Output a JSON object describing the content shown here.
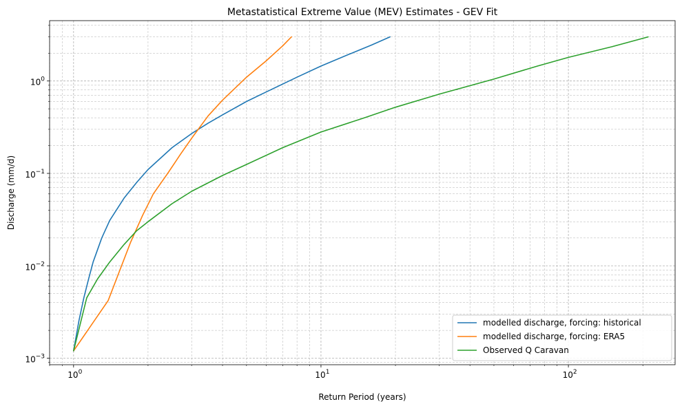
{
  "chart_data": {
    "type": "line",
    "title": "Metastatistical Extreme Value (MEV) Estimates - GEV Fit",
    "xlabel": "Return Period (years)",
    "ylabel": "Discharge (mm/d)",
    "xscale": "log",
    "yscale": "log",
    "xlim": [
      0.8,
      270
    ],
    "ylim": [
      0.00085,
      4.5
    ],
    "grid": true,
    "legend_position": "lower-right",
    "x_ticks": [
      {
        "value": 1,
        "base": "10",
        "exp": "0"
      },
      {
        "value": 10,
        "base": "10",
        "exp": "1"
      },
      {
        "value": 100,
        "base": "10",
        "exp": "2"
      }
    ],
    "y_ticks": [
      {
        "value": 0.001,
        "base": "10",
        "exp": "−3"
      },
      {
        "value": 0.01,
        "base": "10",
        "exp": "−2"
      },
      {
        "value": 0.1,
        "base": "10",
        "exp": "−1"
      },
      {
        "value": 1,
        "base": "10",
        "exp": "0"
      }
    ],
    "series": [
      {
        "name": "modelled discharge, forcing: historical",
        "color": "#1f77b4",
        "points": [
          [
            1.0,
            0.0012
          ],
          [
            1.05,
            0.0025
          ],
          [
            1.1,
            0.0045
          ],
          [
            1.15,
            0.0072
          ],
          [
            1.2,
            0.011
          ],
          [
            1.3,
            0.02
          ],
          [
            1.4,
            0.031
          ],
          [
            1.6,
            0.054
          ],
          [
            1.8,
            0.08
          ],
          [
            2.0,
            0.11
          ],
          [
            2.5,
            0.19
          ],
          [
            3.0,
            0.27
          ],
          [
            3.5,
            0.35
          ],
          [
            4.0,
            0.43
          ],
          [
            5.0,
            0.6
          ],
          [
            6.0,
            0.76
          ],
          [
            8.0,
            1.1
          ],
          [
            10.0,
            1.45
          ],
          [
            13.0,
            1.95
          ],
          [
            16.0,
            2.45
          ],
          [
            19.0,
            3.0
          ]
        ]
      },
      {
        "name": "modelled discharge, forcing: ERA5",
        "color": "#ff7f0e",
        "points": [
          [
            1.0,
            0.0012
          ],
          [
            1.38,
            0.0042
          ],
          [
            1.5,
            0.0075
          ],
          [
            1.7,
            0.018
          ],
          [
            1.9,
            0.035
          ],
          [
            2.1,
            0.06
          ],
          [
            2.4,
            0.1
          ],
          [
            2.7,
            0.16
          ],
          [
            3.0,
            0.24
          ],
          [
            3.5,
            0.42
          ],
          [
            4.0,
            0.62
          ],
          [
            5.0,
            1.1
          ],
          [
            6.0,
            1.65
          ],
          [
            7.0,
            2.4
          ],
          [
            7.6,
            3.0
          ]
        ]
      },
      {
        "name": "Observed Q Caravan",
        "color": "#2ca02c",
        "points": [
          [
            1.0,
            0.0012
          ],
          [
            1.13,
            0.0045
          ],
          [
            1.25,
            0.0072
          ],
          [
            1.4,
            0.011
          ],
          [
            1.6,
            0.017
          ],
          [
            1.8,
            0.024
          ],
          [
            2.0,
            0.03
          ],
          [
            2.5,
            0.047
          ],
          [
            3.0,
            0.064
          ],
          [
            4.0,
            0.095
          ],
          [
            5.0,
            0.125
          ],
          [
            7.0,
            0.19
          ],
          [
            10.0,
            0.28
          ],
          [
            15.0,
            0.4
          ],
          [
            20.0,
            0.52
          ],
          [
            30.0,
            0.72
          ],
          [
            50.0,
            1.05
          ],
          [
            75.0,
            1.45
          ],
          [
            100.0,
            1.8
          ],
          [
            150.0,
            2.35
          ],
          [
            210.0,
            3.0
          ]
        ]
      }
    ]
  }
}
